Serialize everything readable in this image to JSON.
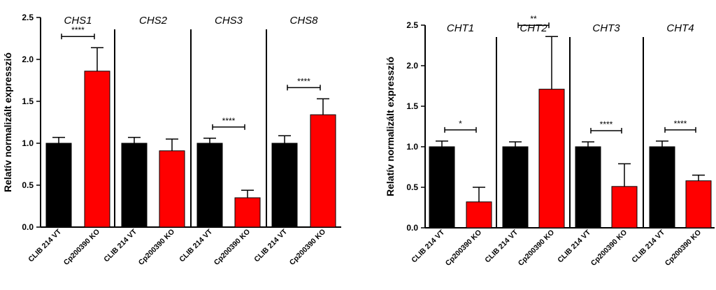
{
  "chart_data": [
    {
      "type": "bar",
      "ylabel": "Relatív normalizált expresszió",
      "ylim": [
        0,
        2.5
      ],
      "yticks": [
        "0.0",
        "0.5",
        "1.0",
        "1.5",
        "2.0",
        "2.5"
      ],
      "grid": false,
      "categories": [
        "CLIB 214 VT",
        "Cp200390 KO"
      ],
      "colors": [
        "#000000",
        "#ff0000"
      ],
      "panels": [
        {
          "gene": "CHS1",
          "values": [
            1.0,
            1.86
          ],
          "errors": [
            0.07,
            0.28
          ],
          "significance": "****"
        },
        {
          "gene": "CHS2",
          "values": [
            1.0,
            0.91
          ],
          "errors": [
            0.07,
            0.14
          ],
          "significance": ""
        },
        {
          "gene": "CHS3",
          "values": [
            1.0,
            0.35
          ],
          "errors": [
            0.06,
            0.09
          ],
          "significance": "****"
        },
        {
          "gene": "CHS8",
          "values": [
            1.0,
            1.34
          ],
          "errors": [
            0.09,
            0.19
          ],
          "significance": "****"
        }
      ]
    },
    {
      "type": "bar",
      "ylabel": "Relatív normalizált expresszió",
      "ylim": [
        0,
        2.5
      ],
      "yticks": [
        "0.0",
        "0.5",
        "1.0",
        "1.5",
        "2.0",
        "2.5"
      ],
      "grid": false,
      "categories": [
        "CLIB 214 VT",
        "Cp200390 KO"
      ],
      "colors": [
        "#000000",
        "#ff0000"
      ],
      "panels": [
        {
          "gene": "CHT1",
          "values": [
            1.0,
            0.32
          ],
          "errors": [
            0.07,
            0.18
          ],
          "significance": "*"
        },
        {
          "gene": "CHT2",
          "values": [
            1.0,
            1.71
          ],
          "errors": [
            0.06,
            0.65
          ],
          "significance": "**"
        },
        {
          "gene": "CHT3",
          "values": [
            1.0,
            0.51
          ],
          "errors": [
            0.06,
            0.28
          ],
          "significance": "****"
        },
        {
          "gene": "CHT4",
          "values": [
            1.0,
            0.58
          ],
          "errors": [
            0.07,
            0.07
          ],
          "significance": "****"
        }
      ]
    }
  ]
}
